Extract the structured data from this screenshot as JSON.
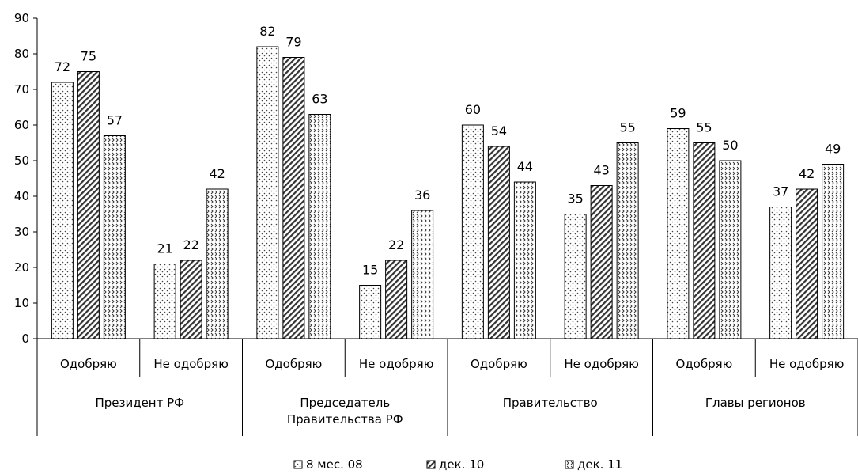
{
  "chart_data": {
    "type": "bar",
    "groups": [
      {
        "label": [
          "Президент РФ"
        ],
        "categories": [
          "Одобряю",
          "Не одобряю"
        ]
      },
      {
        "label": [
          "Председатель",
          "Правительства РФ"
        ],
        "categories": [
          "Одобряю",
          "Не одобряю"
        ]
      },
      {
        "label": [
          "Правительство"
        ],
        "categories": [
          "Одобряю",
          "Не одобряю"
        ]
      },
      {
        "label": [
          "Главы регионов"
        ],
        "categories": [
          "Одобряю",
          "Не одобряю"
        ]
      }
    ],
    "series": [
      {
        "name": "8 мес. 08",
        "pattern": "dots",
        "values": [
          72,
          21,
          82,
          15,
          60,
          35,
          59,
          37
        ]
      },
      {
        "name": "дек. 10",
        "pattern": "diagonal",
        "values": [
          75,
          22,
          79,
          22,
          54,
          43,
          55,
          42
        ]
      },
      {
        "name": "дек. 11",
        "pattern": "checker",
        "values": [
          57,
          42,
          63,
          36,
          44,
          55,
          50,
          49
        ]
      }
    ],
    "ylim": [
      0,
      90
    ],
    "yticks": [
      0,
      10,
      20,
      30,
      40,
      50,
      60,
      70,
      80,
      90
    ],
    "legend_position": "bottom"
  }
}
